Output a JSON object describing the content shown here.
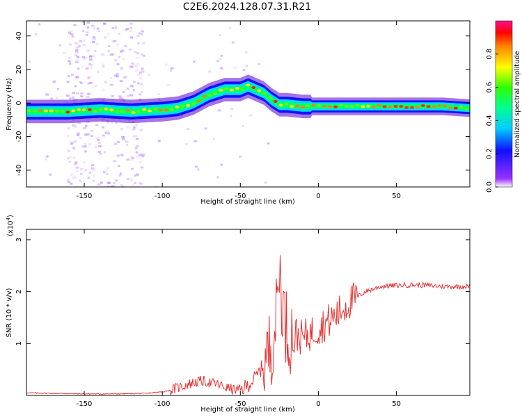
{
  "title": "C2E6.2024.128.07.31.R21",
  "chart_data": [
    {
      "type": "heatmap",
      "xlabel": "Height of straight line (km)",
      "ylabel": "Frequency (Hz)",
      "xlim": [
        -187,
        97
      ],
      "ylim": [
        -50,
        49
      ],
      "xticks": [
        -150,
        -100,
        -50,
        0,
        50
      ],
      "yticks": [
        -40,
        -20,
        0,
        20,
        40
      ],
      "ridge": {
        "x": [
          -187,
          -160,
          -140,
          -120,
          -100,
          -90,
          -80,
          -70,
          -60,
          -50,
          -45,
          -40,
          -35,
          -30,
          -25,
          -20,
          -10,
          0,
          20,
          50,
          80,
          97
        ],
        "frequency_hz": [
          -5,
          -5,
          -4,
          -5,
          -4,
          -3,
          0,
          5,
          8,
          8,
          10,
          8,
          6,
          2,
          -1,
          -1,
          -2,
          -2,
          -2,
          -2,
          -2,
          -3
        ]
      },
      "colorbar": {
        "label": "Normalized spectral amplitude",
        "range": [
          0.0,
          1.0
        ],
        "ticks": [
          0.0,
          0.2,
          0.4,
          0.6,
          0.8
        ]
      },
      "grid": false
    },
    {
      "type": "line",
      "xlabel": "Height of straight line (km)",
      "ylabel": "SNR (10 * v/v)",
      "scale_label": "(x10",
      "scale_exponent": "4",
      "xlim": [
        -187,
        97
      ],
      "ylim": [
        0,
        3.2
      ],
      "xticks": [
        -150,
        -100,
        -50,
        0,
        50
      ],
      "yticks": [
        1,
        2,
        3
      ],
      "color": "#e83030",
      "series": [
        {
          "x": [
            -187,
            -170,
            -150,
            -130,
            -110,
            -100,
            -95,
            -90,
            -85,
            -80,
            -75,
            -70,
            -65,
            -60,
            -55,
            -50,
            -45,
            -40,
            -35,
            -30,
            -27,
            -25,
            -23,
            -20,
            -15,
            -10,
            -5,
            0,
            5,
            10,
            20,
            30,
            40,
            50,
            60,
            70,
            80,
            90,
            97
          ],
          "y": [
            0.05,
            0.04,
            0.03,
            0.03,
            0.04,
            0.07,
            0.1,
            0.15,
            0.2,
            0.25,
            0.28,
            0.25,
            0.22,
            0.16,
            0.12,
            0.1,
            0.2,
            0.35,
            0.6,
            1.0,
            1.5,
            2.5,
            1.8,
            1.2,
            1.2,
            1.1,
            1.2,
            1.3,
            1.4,
            1.5,
            1.8,
            2.0,
            2.1,
            2.12,
            2.13,
            2.12,
            2.1,
            2.1,
            2.1
          ]
        }
      ]
    }
  ]
}
